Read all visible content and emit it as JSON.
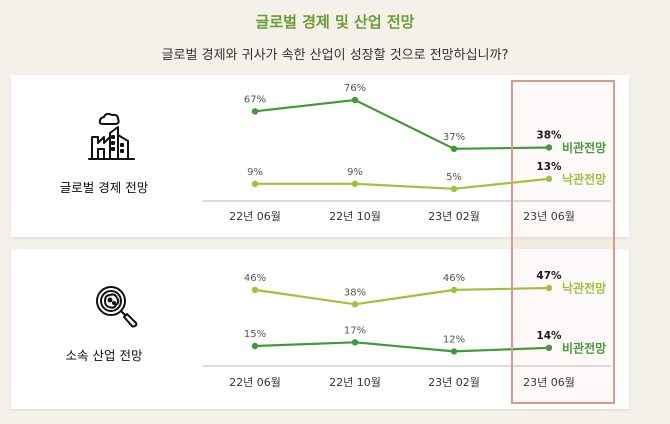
{
  "header": {
    "title": "글로벌 경제 및 산업 전망",
    "question": "글로벌 경제와 귀사가 속한 산업이 성장할 것으로 전망하십니까?"
  },
  "colors": {
    "title_green": "#6a9d35",
    "pessimistic": "#3f9a37",
    "optimistic": "#9cc43b",
    "highlight": "#d99a8a"
  },
  "icons": [
    "factory-icon",
    "magnifier-virus-icon"
  ],
  "chart_data": [
    {
      "type": "line",
      "title": "글로벌 경제 전망",
      "categories": [
        "22년 06월",
        "22년 10월",
        "23년 02월",
        "23년 06월"
      ],
      "series": [
        {
          "name": "비관전망",
          "values": [
            67,
            76,
            37,
            38
          ],
          "labels": [
            "67%",
            "76%",
            "37%",
            "38%"
          ],
          "color": "#3f9a37"
        },
        {
          "name": "낙관전망",
          "values": [
            9,
            9,
            5,
            13
          ],
          "labels": [
            "9%",
            "9%",
            "5%",
            "13%"
          ],
          "color": "#9cc43b"
        }
      ],
      "highlight_category": "23년 06월",
      "grid": false
    },
    {
      "type": "line",
      "title": "소속 산업 전망",
      "categories": [
        "22년 06월",
        "22년 10월",
        "23년 02월",
        "23년 06월"
      ],
      "series": [
        {
          "name": "낙관전망",
          "values": [
            46,
            38,
            46,
            47
          ],
          "labels": [
            "46%",
            "38%",
            "46%",
            "47%"
          ],
          "color": "#9cc43b"
        },
        {
          "name": "비관전망",
          "values": [
            15,
            17,
            12,
            14
          ],
          "labels": [
            "15%",
            "17%",
            "12%",
            "14%"
          ],
          "color": "#3f9a37"
        }
      ],
      "highlight_category": "23년 06월",
      "grid": false
    }
  ]
}
